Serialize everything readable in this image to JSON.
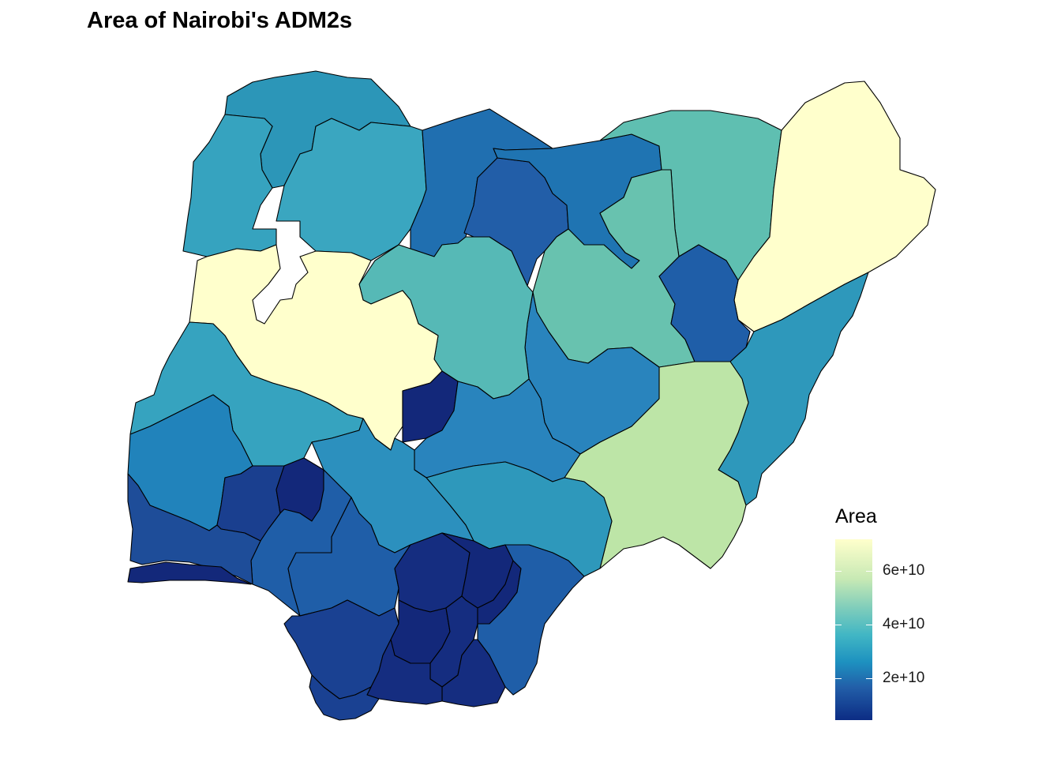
{
  "title": "Area of Nairobi's ADM2s",
  "legend": {
    "title": "Area",
    "ticks": [
      {
        "label": "6e+10",
        "value": 60000000000
      },
      {
        "label": "4e+10",
        "value": 40000000000
      },
      {
        "label": "2e+10",
        "value": 20000000000
      }
    ],
    "scale": "YlGnBu"
  },
  "colors": {
    "very_high": "#ffffcc",
    "high": "#c7e9b4",
    "mid_high": "#5fbfb1",
    "mid": "#3aa6c0",
    "mid_low": "#2a8bbf",
    "low": "#1f6bb0",
    "very_low": "#1f4f9c",
    "lowest": "#13287a"
  }
}
